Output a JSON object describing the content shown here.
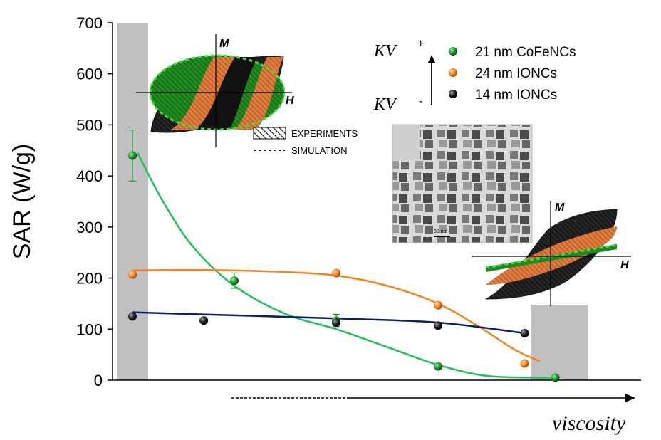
{
  "chart_data": {
    "type": "scatter",
    "title": "",
    "ylabel": "SAR (W/g)",
    "xlabel": "viscosity",
    "ylim": [
      0,
      700
    ],
    "yticks": [
      0,
      100,
      200,
      300,
      400,
      500,
      600,
      700
    ],
    "x_positions": [
      1,
      2,
      3,
      4,
      5,
      6
    ],
    "series": [
      {
        "name": "21 nm CoFeNCs",
        "color": "#1a9a2a",
        "fit_color": "#22c05a",
        "points": [
          {
            "x": 1,
            "y": 440,
            "err": 50
          },
          {
            "x": 2,
            "y": 195,
            "err": 15
          },
          {
            "x": 3,
            "y": 117,
            "err": 12
          },
          {
            "x": 4,
            "y": 27,
            "err": 0
          },
          {
            "x": 5.15,
            "y": 5,
            "err": 0
          }
        ],
        "fit": [
          [
            1.05,
            445
          ],
          [
            1.3,
            350
          ],
          [
            1.6,
            260
          ],
          [
            2,
            185
          ],
          [
            2.5,
            130
          ],
          [
            3,
            100
          ],
          [
            3.5,
            65
          ],
          [
            4,
            30
          ],
          [
            4.5,
            8
          ],
          [
            5.15,
            5
          ]
        ]
      },
      {
        "name": "24 nm IONCs",
        "color": "#f5821f",
        "fit_color": "#f5821f",
        "points": [
          {
            "x": 1,
            "y": 207,
            "err": 0
          },
          {
            "x": 3,
            "y": 210,
            "err": 0
          },
          {
            "x": 4,
            "y": 147,
            "err": 0
          },
          {
            "x": 4.85,
            "y": 33,
            "err": 0
          }
        ],
        "fit": [
          [
            1,
            215
          ],
          [
            1.5,
            216
          ],
          [
            2,
            215
          ],
          [
            2.5,
            212
          ],
          [
            3,
            205
          ],
          [
            3.5,
            185
          ],
          [
            4,
            150
          ],
          [
            4.4,
            105
          ],
          [
            4.75,
            60
          ],
          [
            5,
            37
          ]
        ]
      },
      {
        "name": "14 nm IONCs",
        "color": "#111111",
        "fit_color": "#0a1f6b",
        "points": [
          {
            "x": 1,
            "y": 125,
            "err": 0
          },
          {
            "x": 1.7,
            "y": 117,
            "err": 0
          },
          {
            "x": 3,
            "y": 113,
            "err": 0
          },
          {
            "x": 4,
            "y": 107,
            "err": 0
          },
          {
            "x": 4.85,
            "y": 92,
            "err": 0
          }
        ],
        "fit": [
          [
            1,
            133
          ],
          [
            2,
            127
          ],
          [
            3,
            121
          ],
          [
            4,
            113
          ],
          [
            4.85,
            92
          ]
        ]
      }
    ],
    "legend": {
      "position": "top-right",
      "kv_label": "KV",
      "kv_plus": "+",
      "kv_minus": "-"
    },
    "annotations": {
      "experiments_label": "EXPERIMENTS",
      "simulation_label": "SIMULATION",
      "axis_m": "M",
      "axis_h": "H",
      "scale_bar": "50 nm"
    }
  },
  "colors": {
    "shade": "#c0c0c0",
    "green_loop": "#1f8a1f",
    "orange_loop": "#e07b3c",
    "black_loop": "#1a1a1a"
  }
}
